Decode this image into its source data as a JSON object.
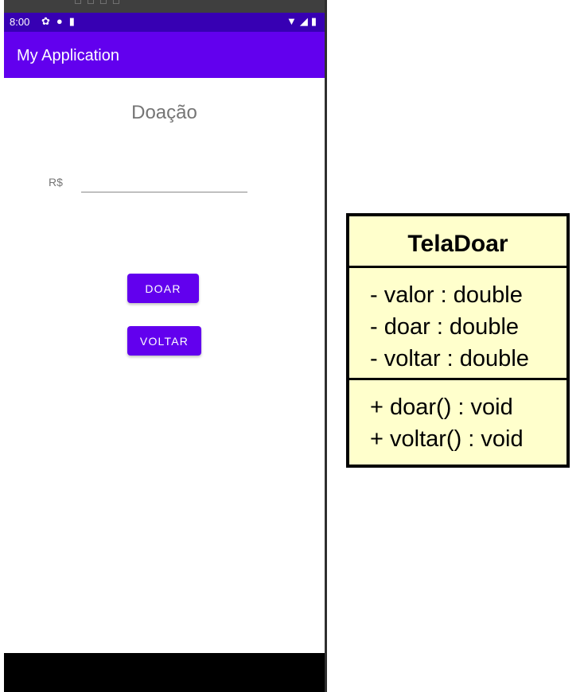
{
  "status_bar": {
    "time": "8:00",
    "left_icons": [
      "settings-icon",
      "play-protect-icon",
      "sd-card-icon"
    ],
    "right_icons": [
      "wifi-icon",
      "signal-icon",
      "battery-icon"
    ]
  },
  "app_bar": {
    "title": "My Application"
  },
  "screen": {
    "title": "Doação",
    "currency_label": "R$",
    "amount_value": "",
    "doar_button": "DOAR",
    "voltar_button": "VOLTAR"
  },
  "colors": {
    "status_bar": "#3700b3",
    "primary": "#6200ee",
    "uml_fill": "#ffffcc"
  },
  "uml_class": {
    "name": "TelaDoar",
    "attributes": [
      "- valor : double",
      "- doar : double",
      "- voltar : double"
    ],
    "methods": [
      "+ doar() : void",
      "+ voltar() : void"
    ]
  }
}
